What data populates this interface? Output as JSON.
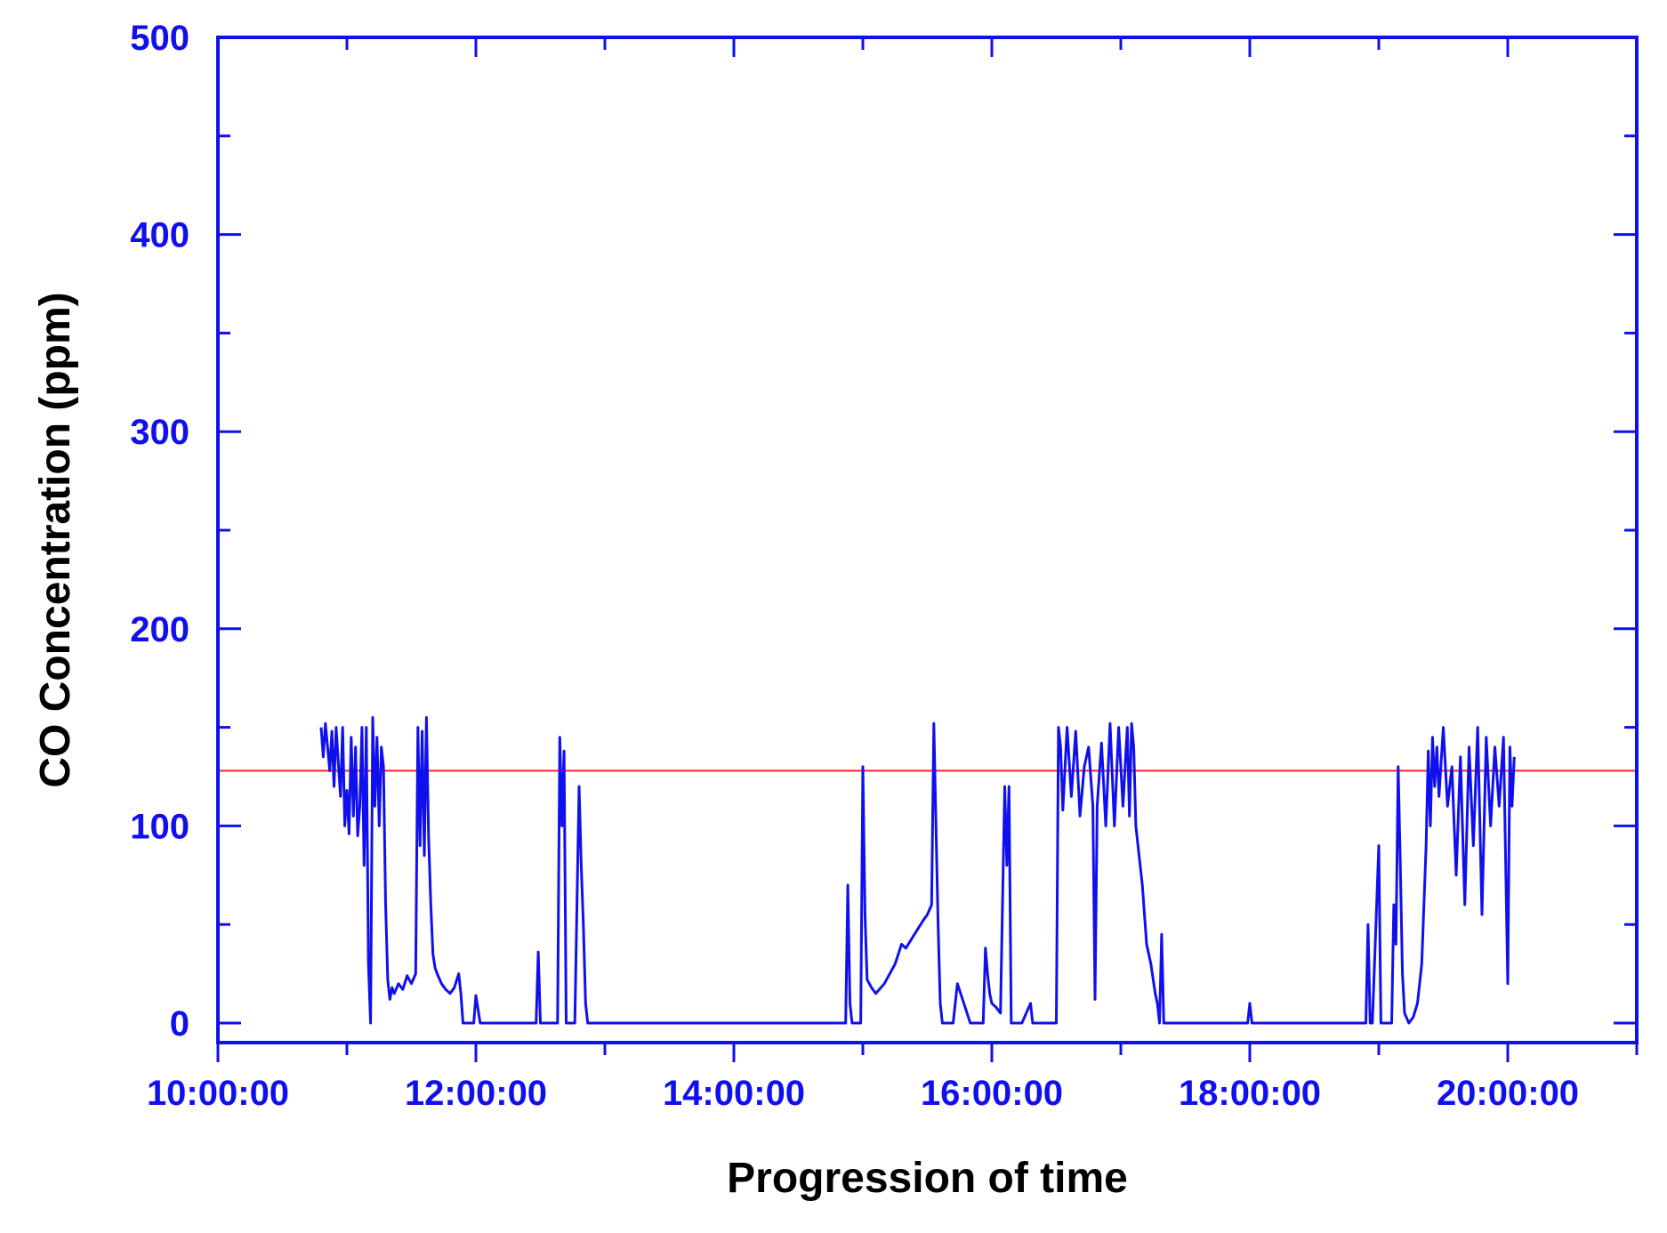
{
  "colors": {
    "axis": "#1010ee",
    "series": "#1010ee",
    "threshold": "#ff2020",
    "title_text": "#000000"
  },
  "chart_data": {
    "type": "line",
    "xlabel": "Progression of time",
    "ylabel": "CO Concentration (ppm)",
    "xlim": [
      "10:00:00",
      "21:00:00"
    ],
    "ylim": [
      0,
      500
    ],
    "x_ticks": [
      "10:00:00",
      "12:00:00",
      "14:00:00",
      "16:00:00",
      "18:00:00",
      "20:00:00"
    ],
    "y_ticks": [
      0,
      100,
      200,
      300,
      400,
      500
    ],
    "grid": false,
    "legend": "none",
    "threshold": {
      "value": 128
    },
    "series": [
      {
        "x": [
          "10:48:00",
          "10:49:00",
          "10:50:00",
          "10:51:00",
          "10:52:00",
          "10:53:00",
          "10:54:00",
          "10:55:00",
          "10:56:00",
          "10:57:00",
          "10:58:00",
          "10:59:00",
          "11:00:00",
          "11:01:00",
          "11:02:00",
          "11:03:00",
          "11:04:00",
          "11:05:00",
          "11:06:00",
          "11:07:00",
          "11:08:00",
          "11:09:00",
          "11:10:00",
          "11:11:00",
          "11:12:00",
          "11:13:00",
          "11:14:00",
          "11:15:00",
          "11:16:00",
          "11:17:00",
          "11:18:00",
          "11:19:00",
          "11:20:00",
          "11:21:00",
          "11:22:00",
          "11:24:00",
          "11:26:00",
          "11:28:00",
          "11:30:00",
          "11:32:00",
          "11:33:00",
          "11:34:00",
          "11:35:00",
          "11:36:00",
          "11:37:00",
          "11:38:00",
          "11:39:00",
          "11:40:00",
          "11:41:00",
          "11:42:00",
          "11:44:00",
          "11:46:00",
          "11:48:00",
          "11:50:00",
          "11:52:00",
          "11:53:00",
          "11:54:00",
          "11:55:00",
          "11:56:00",
          "11:57:00",
          "11:58:00",
          "11:59:00",
          "12:00:00",
          "12:02:00",
          "12:20:00",
          "12:28:00",
          "12:29:00",
          "12:30:00",
          "12:31:00",
          "12:38:00",
          "12:39:00",
          "12:40:00",
          "12:41:00",
          "12:42:00",
          "12:43:00",
          "12:44:00",
          "12:45:00",
          "12:46:00",
          "12:48:00",
          "12:49:00",
          "12:50:00",
          "12:51:00",
          "12:52:00",
          "12:53:00",
          "12:55:00",
          "13:30:00",
          "14:00:00",
          "14:30:00",
          "14:50:00",
          "14:52:00",
          "14:53:00",
          "14:54:00",
          "14:55:00",
          "14:56:00",
          "14:58:00",
          "14:59:00",
          "15:00:00",
          "15:01:00",
          "15:02:00",
          "15:04:00",
          "15:06:00",
          "15:10:00",
          "15:15:00",
          "15:18:00",
          "15:20:00",
          "15:24:00",
          "15:28:00",
          "15:30:00",
          "15:32:00",
          "15:33:00",
          "15:34:00",
          "15:35:00",
          "15:36:00",
          "15:37:00",
          "15:38:00",
          "15:40:00",
          "15:42:00",
          "15:44:00",
          "15:50:00",
          "15:53:00",
          "15:54:00",
          "15:55:00",
          "15:56:00",
          "15:57:00",
          "15:58:00",
          "15:59:00",
          "16:00:00",
          "16:02:00",
          "16:04:00",
          "16:06:00",
          "16:07:00",
          "16:08:00",
          "16:09:00",
          "16:10:00",
          "16:11:00",
          "16:12:00",
          "16:14:00",
          "16:18:00",
          "16:19:00",
          "16:20:00",
          "16:30:00",
          "16:31:00",
          "16:32:00",
          "16:33:00",
          "16:35:00",
          "16:37:00",
          "16:39:00",
          "16:41:00",
          "16:43:00",
          "16:45:00",
          "16:47:00",
          "16:48:00",
          "16:49:00",
          "16:51:00",
          "16:53:00",
          "16:55:00",
          "16:57:00",
          "16:59:00",
          "17:01:00",
          "17:03:00",
          "17:04:00",
          "17:05:00",
          "17:06:00",
          "17:07:00",
          "17:08:00",
          "17:10:00",
          "17:12:00",
          "17:14:00",
          "17:16:00",
          "17:17:00",
          "17:18:00",
          "17:19:00",
          "17:20:00",
          "17:22:00",
          "17:30:00",
          "17:59:00",
          "18:00:00",
          "18:01:00",
          "18:02:00",
          "18:30:00",
          "18:53:00",
          "18:54:00",
          "18:55:00",
          "18:56:00",
          "18:57:00",
          "19:00:00",
          "19:01:00",
          "19:02:00",
          "19:03:00",
          "19:06:00",
          "19:07:00",
          "19:08:00",
          "19:09:00",
          "19:10:00",
          "19:11:00",
          "19:12:00",
          "19:14:00",
          "19:16:00",
          "19:18:00",
          "19:20:00",
          "19:22:00",
          "19:23:00",
          "19:24:00",
          "19:25:00",
          "19:26:00",
          "19:27:00",
          "19:28:00",
          "19:30:00",
          "19:32:00",
          "19:34:00",
          "19:36:00",
          "19:38:00",
          "19:40:00",
          "19:42:00",
          "19:44:00",
          "19:46:00",
          "19:48:00",
          "19:50:00",
          "19:52:00",
          "19:54:00",
          "19:56:00",
          "19:58:00",
          "20:00:00",
          "20:01:00",
          "20:02:00",
          "20:03:00"
        ],
        "y": [
          150,
          135,
          152,
          140,
          128,
          148,
          120,
          150,
          132,
          115,
          150,
          100,
          118,
          96,
          145,
          105,
          140,
          95,
          110,
          150,
          80,
          150,
          30,
          0,
          155,
          110,
          145,
          100,
          140,
          130,
          60,
          22,
          12,
          18,
          15,
          20,
          17,
          24,
          20,
          25,
          150,
          90,
          148,
          85,
          155,
          95,
          60,
          35,
          28,
          25,
          20,
          17,
          15,
          18,
          25,
          15,
          0,
          0,
          0,
          0,
          0,
          0,
          14,
          0,
          0,
          0,
          36,
          0,
          0,
          0,
          145,
          100,
          138,
          0,
          0,
          0,
          0,
          0,
          120,
          80,
          50,
          10,
          0,
          0,
          0,
          0,
          0,
          0,
          0,
          0,
          70,
          10,
          0,
          0,
          0,
          0,
          130,
          55,
          22,
          18,
          15,
          20,
          30,
          40,
          38,
          45,
          52,
          55,
          60,
          152,
          100,
          50,
          10,
          0,
          0,
          0,
          0,
          20,
          0,
          0,
          0,
          0,
          0,
          38,
          25,
          15,
          10,
          8,
          5,
          120,
          80,
          120,
          0,
          0,
          0,
          0,
          0,
          10,
          0,
          0,
          0,
          150,
          140,
          108,
          150,
          115,
          148,
          105,
          130,
          140,
          110,
          12,
          110,
          142,
          100,
          152,
          100,
          150,
          110,
          150,
          105,
          152,
          140,
          100,
          90,
          70,
          40,
          30,
          15,
          10,
          0,
          45,
          0,
          0,
          0,
          0,
          10,
          0,
          0,
          0,
          0,
          0,
          50,
          0,
          0,
          90,
          0,
          0,
          0,
          0,
          60,
          40,
          130,
          80,
          25,
          5,
          0,
          3,
          10,
          30,
          90,
          138,
          100,
          145,
          120,
          140,
          115,
          150,
          110,
          130,
          75,
          135,
          60,
          140,
          90,
          150,
          55,
          145,
          100,
          140,
          110,
          145,
          20,
          140,
          110,
          135
        ],
        "color": "#1010ee"
      }
    ]
  }
}
